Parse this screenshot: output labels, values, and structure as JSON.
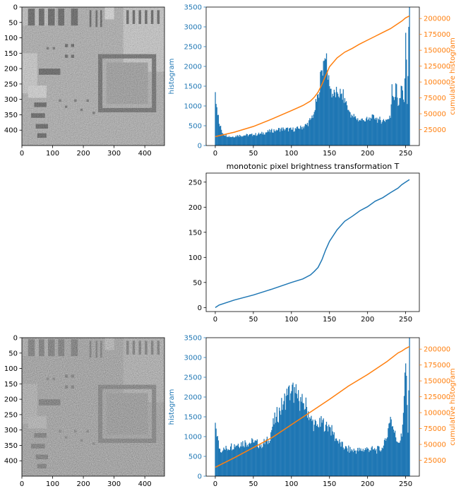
{
  "colors": {
    "blue": "#1f77b4",
    "orange": "#ff7f0e",
    "axis": "#000000"
  },
  "chart_data": [
    {
      "type": "heatmap",
      "description_kind": "grayscale image (original PCB x-ray)",
      "xlim": [
        0,
        464
      ],
      "ylim": [
        0,
        450
      ],
      "xticks": [
        0,
        100,
        200,
        300,
        400
      ],
      "yticks": [
        0,
        50,
        100,
        150,
        200,
        250,
        300,
        350,
        400
      ]
    },
    {
      "type": "bar",
      "secondary_type": "line",
      "xlim": [
        -12,
        268
      ],
      "xticks": [
        0,
        50,
        100,
        150,
        200,
        250
      ],
      "ylabel": "histogram",
      "ylim": [
        0,
        3500
      ],
      "yticks": [
        0,
        500,
        1000,
        1500,
        2000,
        2500,
        3000,
        3500
      ],
      "y2label": "cumulative histogram",
      "y2lim": [
        0,
        218000
      ],
      "y2ticks": [
        25000,
        50000,
        75000,
        100000,
        125000,
        150000,
        175000,
        200000
      ],
      "histogram_x": [
        0,
        5,
        10,
        20,
        30,
        40,
        50,
        60,
        70,
        80,
        90,
        100,
        110,
        120,
        125,
        130,
        135,
        140,
        143,
        145,
        147,
        150,
        155,
        160,
        165,
        170,
        175,
        180,
        185,
        190,
        195,
        200,
        205,
        210,
        215,
        220,
        225,
        230,
        232,
        235,
        238,
        240,
        243,
        245,
        248,
        250,
        252,
        255
      ],
      "histogram_y": [
        1350,
        550,
        300,
        220,
        250,
        260,
        270,
        300,
        350,
        400,
        420,
        400,
        430,
        520,
        650,
        850,
        1300,
        1900,
        2150,
        2180,
        1900,
        1500,
        1250,
        1350,
        1300,
        1200,
        900,
        750,
        680,
        650,
        640,
        640,
        680,
        700,
        650,
        640,
        650,
        700,
        1550,
        1150,
        1550,
        1000,
        1200,
        1500,
        1100,
        2850,
        1050,
        3500
      ],
      "cumulative_x": [
        0,
        25,
        50,
        75,
        100,
        115,
        125,
        130,
        135,
        140,
        145,
        150,
        160,
        170,
        180,
        190,
        200,
        210,
        220,
        230,
        240,
        245,
        250,
        255
      ],
      "cumulative_y": [
        14000,
        21000,
        30000,
        42000,
        55000,
        63000,
        70000,
        76000,
        84000,
        96000,
        110000,
        124000,
        138000,
        147000,
        153000,
        160000,
        166000,
        172000,
        178000,
        184000,
        192000,
        196000,
        201000,
        204000
      ]
    },
    {
      "type": "line",
      "title": "monotonic pixel brightness transformation T",
      "xlim": [
        -12,
        268
      ],
      "ylim": [
        -8,
        268
      ],
      "xticks": [
        0,
        50,
        100,
        150,
        200,
        250
      ],
      "yticks": [
        0,
        50,
        100,
        150,
        200,
        250
      ],
      "x": [
        0,
        5,
        25,
        50,
        75,
        100,
        115,
        125,
        130,
        135,
        140,
        145,
        150,
        160,
        170,
        180,
        190,
        200,
        210,
        220,
        230,
        240,
        245,
        250,
        255
      ],
      "y": [
        0,
        5,
        15,
        25,
        37,
        50,
        57,
        65,
        72,
        80,
        95,
        115,
        132,
        155,
        172,
        182,
        193,
        201,
        212,
        219,
        229,
        238,
        245,
        250,
        255
      ]
    },
    {
      "type": "heatmap",
      "description_kind": "grayscale image (equalized PCB x-ray)",
      "xlim": [
        0,
        464
      ],
      "ylim": [
        0,
        450
      ],
      "xticks": [
        0,
        100,
        200,
        300,
        400
      ],
      "yticks": [
        0,
        50,
        100,
        150,
        200,
        250,
        300,
        350,
        400
      ]
    },
    {
      "type": "bar",
      "secondary_type": "line",
      "xlim": [
        -12,
        268
      ],
      "xticks": [
        0,
        50,
        100,
        150,
        200,
        250
      ],
      "ylabel": "histogram",
      "ylim": [
        0,
        3500
      ],
      "yticks": [
        0,
        500,
        1000,
        1500,
        2000,
        2500,
        3000,
        3500
      ],
      "y2label": "cumulative histogram",
      "y2lim": [
        0,
        218000
      ],
      "y2ticks": [
        25000,
        50000,
        75000,
        100000,
        125000,
        150000,
        175000,
        200000
      ],
      "histogram_x": [
        0,
        5,
        10,
        20,
        30,
        40,
        50,
        60,
        70,
        75,
        80,
        85,
        90,
        95,
        100,
        105,
        110,
        115,
        120,
        125,
        130,
        135,
        140,
        145,
        150,
        155,
        160,
        170,
        180,
        190,
        200,
        210,
        220,
        225,
        230,
        235,
        240,
        245,
        250,
        253,
        255
      ],
      "histogram_y": [
        1350,
        700,
        650,
        750,
        820,
        850,
        850,
        800,
        900,
        1250,
        1500,
        1650,
        1900,
        2050,
        2150,
        2100,
        1900,
        1850,
        1750,
        1450,
        1300,
        1250,
        1350,
        1300,
        1250,
        1050,
        900,
        700,
        650,
        650,
        700,
        650,
        700,
        950,
        1500,
        1100,
        850,
        1000,
        2850,
        1100,
        3500
      ],
      "cumulative_x": [
        0,
        25,
        50,
        75,
        100,
        125,
        150,
        175,
        200,
        225,
        240,
        245,
        250,
        255
      ],
      "cumulative_y": [
        14000,
        29000,
        45000,
        61000,
        81000,
        101000,
        121000,
        142000,
        160000,
        180000,
        194000,
        197000,
        201000,
        204000
      ]
    }
  ]
}
